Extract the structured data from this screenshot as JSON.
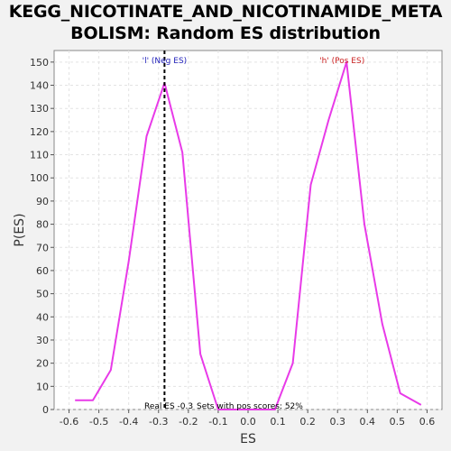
{
  "chart_data": {
    "type": "line",
    "title_line1": "KEGG_NICOTINATE_AND_NICOTINAMIDE_META",
    "title_line2": "BOLISM: Random ES distribution",
    "xlabel": "ES",
    "ylabel": "P(ES)",
    "xlim": [
      -0.65,
      0.65
    ],
    "ylim": [
      0,
      155
    ],
    "x_ticks": [
      "-0.6",
      "-0.5",
      "-0.4",
      "-0.3",
      "-0.2",
      "-0.1",
      "0.0",
      "0.1",
      "0.2",
      "0.3",
      "0.4",
      "0.5",
      "0.6"
    ],
    "y_ticks": [
      "0",
      "10",
      "20",
      "30",
      "40",
      "50",
      "60",
      "70",
      "80",
      "90",
      "100",
      "110",
      "120",
      "130",
      "140",
      "150"
    ],
    "grid": true,
    "series": [
      {
        "color": "#e83ae8",
        "x": [
          -0.58,
          -0.52,
          -0.46,
          -0.4,
          -0.34,
          -0.28,
          -0.22,
          -0.16,
          -0.1,
          -0.04,
          0.03,
          0.09,
          0.15,
          0.21,
          0.27,
          0.33,
          0.39,
          0.45,
          0.51,
          0.58
        ],
        "y": [
          4,
          4,
          17,
          64,
          118,
          141,
          111,
          24,
          0,
          0,
          0,
          0,
          20,
          97,
          125,
          150,
          80,
          37,
          7,
          2
        ]
      }
    ],
    "real_es": -0.28,
    "annotations": {
      "neg_label": "'l' (Neg ES)",
      "pos_label": "'h' (Pos ES)",
      "real_es_label": "Real ES -0.3",
      "sets_label": "Sets with pos scores: 52%"
    },
    "colors": {
      "curve": "#e83ae8",
      "neg_label": "#2222bb",
      "pos_label": "#cc2222"
    }
  }
}
